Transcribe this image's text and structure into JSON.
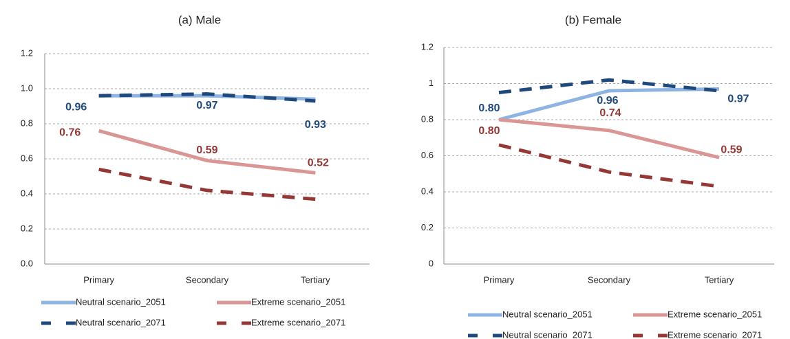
{
  "chart_data": [
    {
      "type": "line",
      "title": "(a) Male",
      "categories": [
        "Primary",
        "Secondary",
        "Tertiary"
      ],
      "ylim": [
        0,
        1.2
      ],
      "yticks": [
        {
          "value": 0,
          "label": "0.0"
        },
        0.2,
        0.4,
        0.6,
        0.8,
        {
          "value": 1,
          "label": "1.0"
        },
        1.2
      ],
      "grid": true,
      "series": [
        {
          "name": "Neutral scenario_2051",
          "color": "#8eb4e3",
          "dash": false,
          "values": [
            0.96,
            0.96,
            0.94
          ]
        },
        {
          "name": "Extreme scenario_2051",
          "color": "#d99694",
          "dash": false,
          "label_color": "#953735",
          "values": [
            0.76,
            0.59,
            0.52
          ]
        },
        {
          "name": "Neutral scenario_2071",
          "color": "#1f497d",
          "dash": true,
          "label_color": "#1f497d",
          "values": [
            0.96,
            0.97,
            0.93
          ]
        },
        {
          "name": "Extreme scenario_2071",
          "color": "#953735",
          "dash": true,
          "values": [
            0.54,
            0.42,
            0.37
          ]
        }
      ]
    },
    {
      "type": "line",
      "title": "(b) Female",
      "categories": [
        "Primary",
        "Secondary",
        "Tertiary"
      ],
      "ylim": [
        0,
        1.2
      ],
      "yticks": [
        0,
        0.2,
        0.4,
        0.6,
        0.8,
        1,
        1.2
      ],
      "grid": true,
      "series": [
        {
          "name": "Neutral scenario_2051",
          "color": "#8eb4e3",
          "dash": false,
          "label_color": "#1f497d",
          "values": [
            0.8,
            0.96,
            0.97
          ],
          "value_labels": [
            "0.80",
            "0.96",
            "0.97"
          ]
        },
        {
          "name": "Extreme scenario_2051",
          "color": "#d99694",
          "dash": false,
          "label_color": "#953735",
          "values": [
            0.8,
            0.74,
            0.59
          ],
          "value_labels": [
            "0.80",
            "0.74",
            "0.59"
          ]
        },
        {
          "name": "Neutral scenario_2071",
          "color": "#1f497d",
          "dash": true,
          "values": [
            0.95,
            1.02,
            0.96
          ]
        },
        {
          "name": "Extreme scenario_2071",
          "color": "#953735",
          "dash": true,
          "values": [
            0.66,
            0.51,
            0.43
          ]
        }
      ]
    }
  ]
}
